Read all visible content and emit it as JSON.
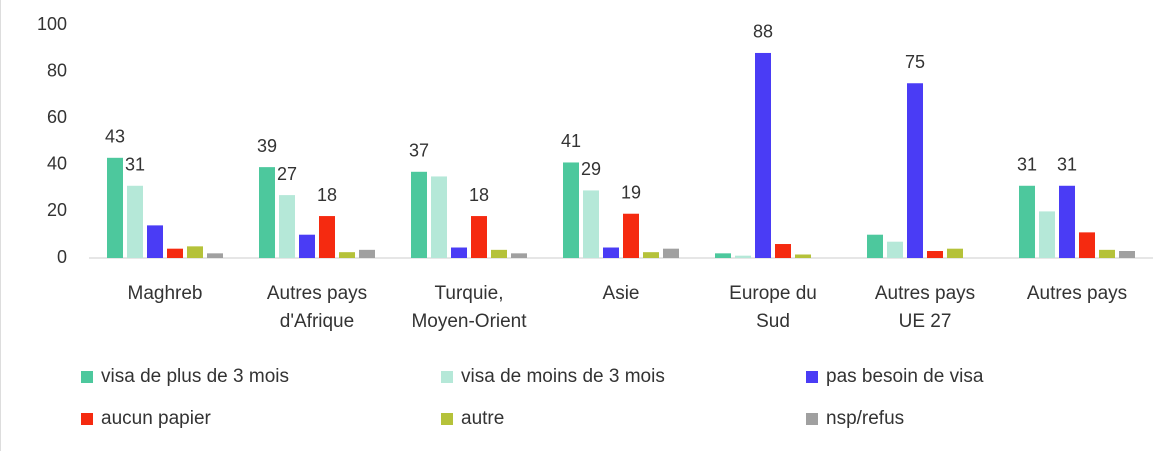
{
  "chart_data": {
    "type": "bar",
    "categories": [
      "Maghreb",
      "Autres pays\nd'Afrique",
      "Turquie,\nMoyen-Orient",
      "Asie",
      "Europe du\nSud",
      "Autres pays\nUE 27",
      "Autres pays"
    ],
    "series": [
      {
        "name": "visa de plus de 3 mois",
        "color": "#4dc89d",
        "values": [
          43,
          39,
          37,
          41,
          2,
          10,
          31
        ],
        "value_labels": [
          "43",
          "39",
          "37",
          "41",
          null,
          null,
          "31"
        ]
      },
      {
        "name": "visa de moins de 3 mois",
        "color": "#b5e8d8",
        "values": [
          31,
          27,
          35,
          29,
          1,
          7,
          20
        ],
        "value_labels": [
          "31",
          "27",
          null,
          "29",
          null,
          null,
          null
        ]
      },
      {
        "name": "pas besoin de visa",
        "color": "#4a3cf5",
        "values": [
          14,
          10,
          4.5,
          4.5,
          88,
          75,
          31
        ],
        "value_labels": [
          null,
          null,
          null,
          null,
          "88",
          "75",
          "31"
        ]
      },
      {
        "name": "aucun papier",
        "color": "#f52a10",
        "values": [
          4,
          18,
          18,
          19,
          6,
          3,
          11
        ],
        "value_labels": [
          null,
          "18",
          "18",
          "19",
          null,
          null,
          null
        ]
      },
      {
        "name": "autre",
        "color": "#b5c23a",
        "values": [
          5,
          2.5,
          3.5,
          2.5,
          1.5,
          4,
          3.5
        ]
      },
      {
        "name": "nsp/refus",
        "color": "#a0a0a0",
        "values": [
          2,
          3.5,
          2,
          4,
          0,
          0,
          3
        ]
      }
    ],
    "ylim": [
      0,
      100
    ],
    "yticks": [
      0,
      20,
      40,
      60,
      80,
      100
    ],
    "grid": false,
    "legend": "bottom"
  }
}
